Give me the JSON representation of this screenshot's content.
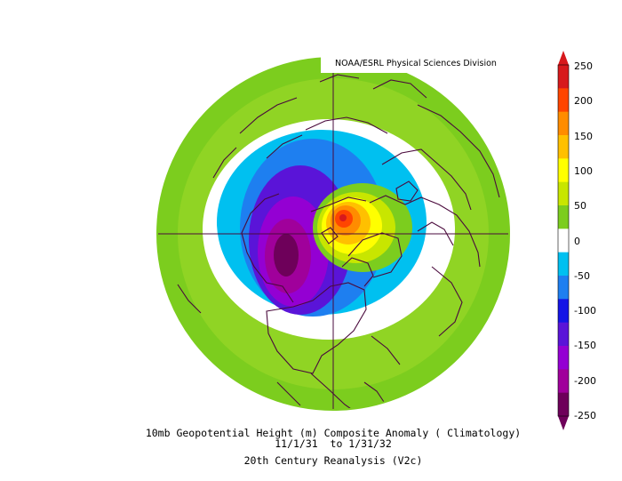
{
  "credit": "NOAA/ESRL Physical Sciences Division",
  "caption": {
    "line1": "10mb Geopotential Height (m) Composite Anomaly ( Climatology)",
    "line2": "11/1/31  to 1/31/32",
    "line3": "20th Century Reanalysis (V2c)"
  },
  "colorbar": {
    "ticks": [
      "250",
      "200",
      "150",
      "100",
      "50",
      "0",
      "-50",
      "-100",
      "-150",
      "-200",
      "-250"
    ],
    "colors": [
      "#d7191c",
      "#ff4500",
      "#ff8c00",
      "#ffc000",
      "#ffff00",
      "#c8e600",
      "#7ccd1e",
      "#ffffff",
      "#00c0f0",
      "#1e7ff0",
      "#1414e6",
      "#5a14d8",
      "#9400d3",
      "#a0009b",
      "#6e005a"
    ]
  },
  "palette": {
    "green": "#7ccd1e",
    "light_green": "#9ad82a",
    "white": "#ffffff",
    "cyan": "#00c0f0",
    "blue": "#1e7ff0",
    "purple": "#7a14d8",
    "violet": "#9400d3",
    "magenta": "#a0009b",
    "plum": "#6e005a",
    "yellow_green": "#c8e600",
    "yellow": "#ffff00",
    "gold": "#ffc000",
    "orange": "#ff8c00",
    "red_orange": "#ff4500",
    "red": "#d7191c",
    "coast": "#4a0a3c"
  }
}
